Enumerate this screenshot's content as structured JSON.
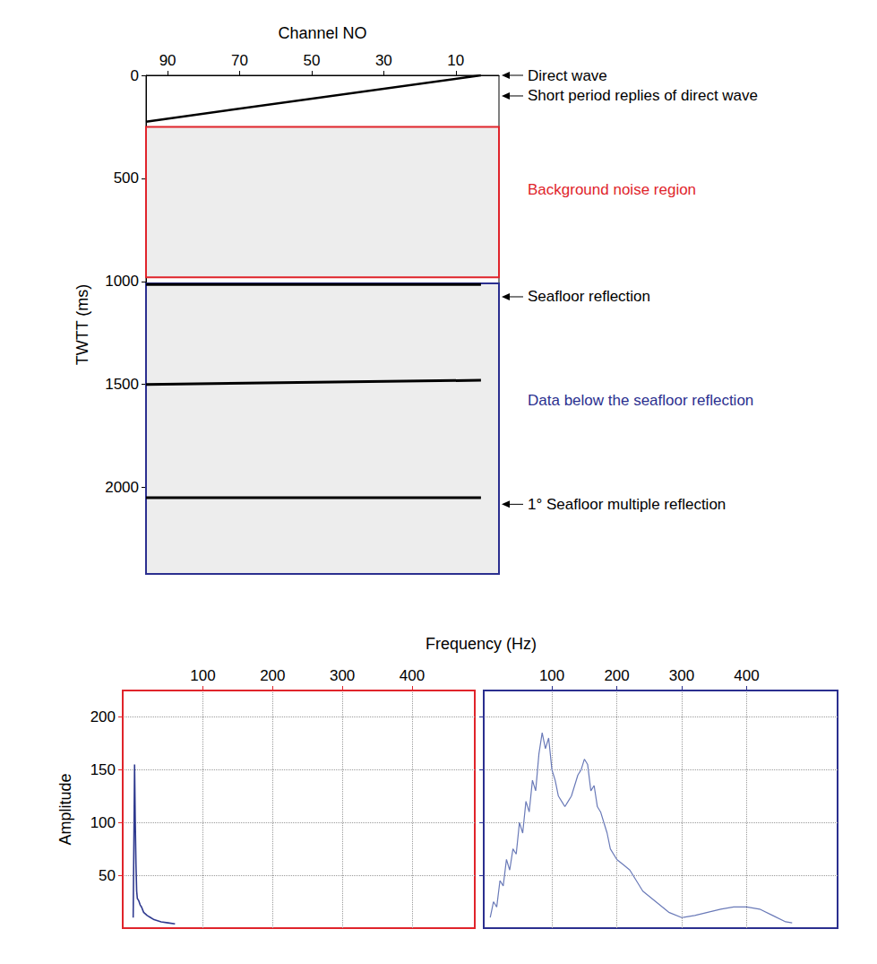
{
  "chart_data": [
    {
      "type": "line",
      "xlabel": "Channel NO",
      "ylabel": "TWTT (ms)",
      "xlim": [
        96,
        -2
      ],
      "xticks": [
        90,
        70,
        50,
        30,
        10
      ],
      "ylim": [
        2420,
        0
      ],
      "yticks": [
        0,
        500,
        1000,
        1500,
        2000
      ],
      "grid": false,
      "series": [
        {
          "color": "#000000",
          "x": [
            96,
            3
          ],
          "values": [
            225,
            0
          ]
        },
        {
          "color": "#000000",
          "x": [
            96,
            3
          ],
          "values": [
            1015,
            1015
          ]
        },
        {
          "color": "#000000",
          "x": [
            96,
            3
          ],
          "values": [
            1500,
            1480
          ]
        },
        {
          "color": "#000000",
          "x": [
            96,
            3
          ],
          "values": [
            2050,
            2050
          ]
        }
      ],
      "regions": [
        {
          "ylim": [
            250,
            980
          ],
          "color": "#e0242b"
        },
        {
          "ylim": [
            1010,
            2420
          ],
          "color": "#2b2f8f"
        }
      ],
      "annotations": [
        {
          "text": "Direct wave",
          "y": 0,
          "color": "#000000",
          "marker": "arrow"
        },
        {
          "text": "Short period replies of direct wave",
          "y": 100,
          "color": "#000000",
          "marker": "arrow"
        },
        {
          "text": "Background noise region",
          "y": 555,
          "color": "#e0242b"
        },
        {
          "text": "Seafloor reflection",
          "y": 1075,
          "color": "#000000",
          "marker": "arrow"
        },
        {
          "text": "Data below the seafloor reflection",
          "y": 1578,
          "color": "#2b2f8f"
        },
        {
          "text": "1° Seafloor multiple reflection",
          "y": 2082,
          "color": "#000000",
          "marker": "arrow"
        }
      ]
    },
    {
      "type": "line",
      "xlabel": "Frequency (Hz)",
      "ylabel": "Amplitude",
      "color": "#e0242b",
      "xlim": [
        -15,
        490
      ],
      "xticks": [
        100,
        200,
        300,
        400
      ],
      "ylim": [
        0,
        225
      ],
      "yticks": [
        50,
        100,
        150,
        200
      ],
      "grid": true,
      "series": [
        {
          "color": "#2f3a8f",
          "x": [
            0,
            1,
            2,
            3,
            4,
            5,
            6,
            8,
            10,
            12,
            15,
            20,
            25,
            30,
            40,
            50,
            60
          ],
          "values": [
            10,
            80,
            155,
            100,
            60,
            35,
            28,
            26,
            22,
            20,
            15,
            12,
            10,
            8,
            6,
            5,
            4
          ]
        }
      ]
    },
    {
      "type": "line",
      "color": "#2b2f8f",
      "xlim": [
        -5,
        540
      ],
      "xticks": [
        100,
        200,
        300,
        400
      ],
      "ylim": [
        0,
        225
      ],
      "yticks": [
        50,
        100,
        150,
        200
      ],
      "grid": true,
      "tick_labels": "x",
      "series": [
        {
          "color": "#6a7ab8",
          "x": [
            5,
            10,
            15,
            20,
            25,
            30,
            35,
            40,
            45,
            50,
            55,
            60,
            65,
            70,
            75,
            80,
            85,
            90,
            95,
            100,
            105,
            110,
            115,
            120,
            125,
            130,
            135,
            140,
            145,
            150,
            155,
            160,
            165,
            170,
            175,
            180,
            185,
            190,
            200,
            210,
            220,
            230,
            240,
            260,
            280,
            300,
            320,
            340,
            360,
            380,
            400,
            420,
            440,
            460,
            470
          ],
          "values": [
            10,
            25,
            20,
            45,
            40,
            65,
            55,
            75,
            70,
            100,
            90,
            120,
            110,
            140,
            130,
            165,
            185,
            170,
            180,
            150,
            140,
            125,
            120,
            115,
            120,
            125,
            135,
            145,
            150,
            160,
            155,
            130,
            135,
            115,
            110,
            100,
            90,
            75,
            65,
            60,
            55,
            45,
            35,
            25,
            15,
            10,
            12,
            15,
            18,
            20,
            20,
            18,
            12,
            6,
            5
          ]
        }
      ]
    }
  ]
}
